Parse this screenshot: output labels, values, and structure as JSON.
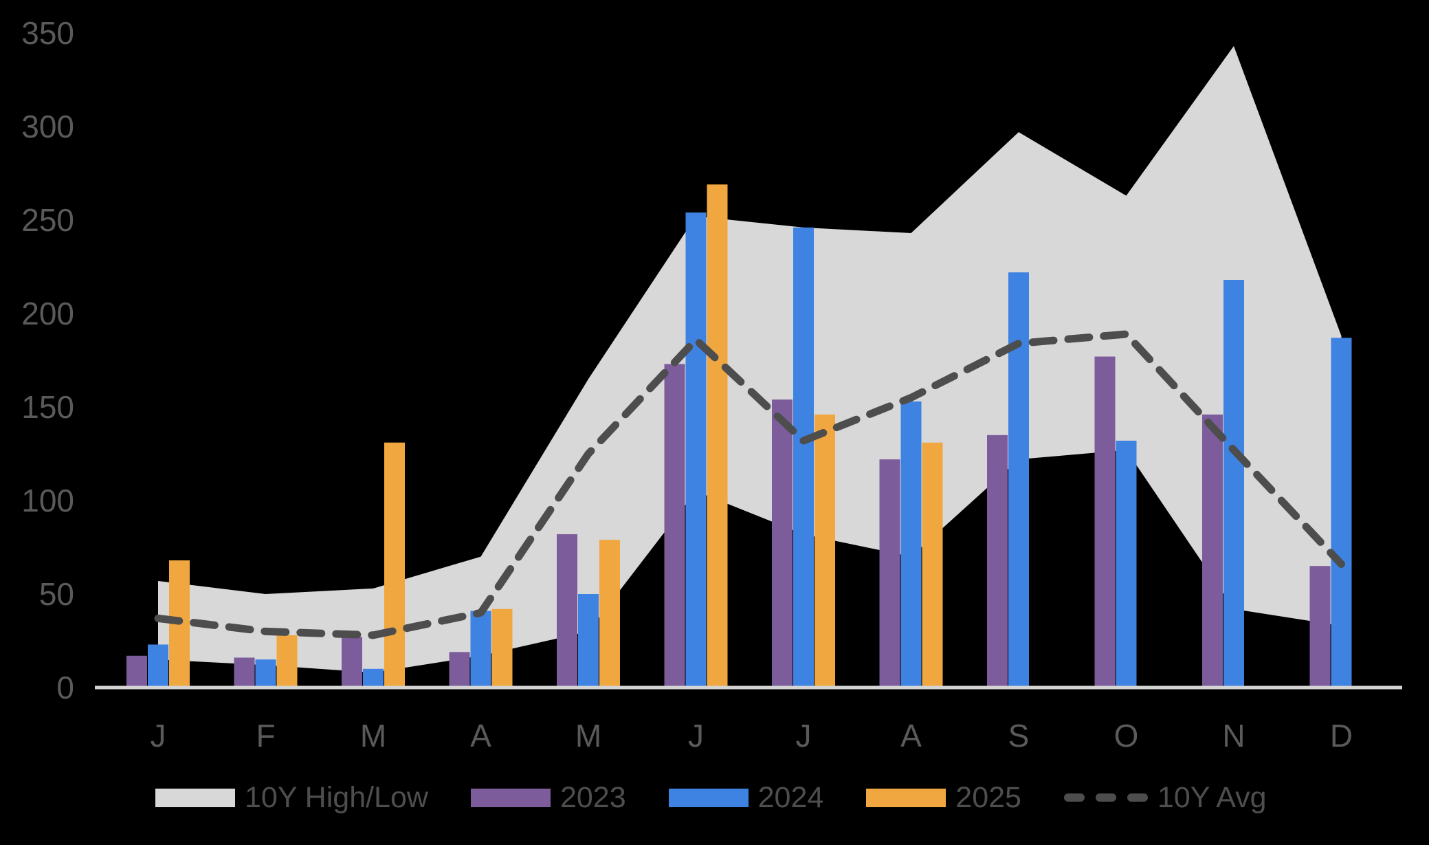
{
  "background_color": "#000000",
  "axis": {
    "text_color": "#5a5a5a",
    "baseline_color": "#d4d4d4",
    "y_ticks": [
      0,
      50,
      100,
      150,
      200,
      250,
      300,
      350
    ],
    "x_labels": [
      "J",
      "F",
      "M",
      "A",
      "M",
      "J",
      "J",
      "A",
      "S",
      "O",
      "N",
      "D"
    ]
  },
  "legend": {
    "band_label": "10Y High/Low",
    "s2023_label": "2023",
    "s2024_label": "2024",
    "s2025_label": "2025",
    "avg_label": "10Y Avg"
  },
  "chart_data": {
    "type": "bar",
    "subtype": "grouped-bars-with-range-band-and-dashed-average-line",
    "categories": [
      "J",
      "F",
      "M",
      "A",
      "M",
      "J",
      "J",
      "A",
      "S",
      "O",
      "N",
      "D"
    ],
    "ylim": [
      0,
      350
    ],
    "grid": "off",
    "legend_position": "bottom",
    "band": {
      "name": "10Y High/Low",
      "color": "#d8d8d8",
      "high": [
        57,
        50,
        53,
        70,
        165,
        252,
        246,
        243,
        297,
        263,
        343,
        188
      ],
      "low": [
        15,
        12,
        8,
        17,
        30,
        105,
        82,
        70,
        122,
        127,
        42,
        33
      ]
    },
    "series": [
      {
        "name": "2023",
        "type": "bar",
        "color": "#7d5c9b",
        "values": [
          17,
          16,
          27,
          19,
          82,
          173,
          154,
          122,
          135,
          177,
          146,
          65
        ]
      },
      {
        "name": "2024",
        "type": "bar",
        "color": "#3e82e2",
        "values": [
          23,
          15,
          10,
          41,
          50,
          254,
          246,
          153,
          222,
          132,
          218,
          187
        ]
      },
      {
        "name": "2025",
        "type": "bar",
        "color": "#f0a73f",
        "values": [
          68,
          28,
          131,
          42,
          79,
          269,
          146,
          131,
          null,
          null,
          null,
          null
        ]
      },
      {
        "name": "10Y Avg",
        "type": "dashed-line",
        "color": "#4d4d4d",
        "values": [
          37,
          30,
          28,
          40,
          125,
          186,
          132,
          155,
          184,
          189,
          127,
          66
        ]
      }
    ]
  }
}
